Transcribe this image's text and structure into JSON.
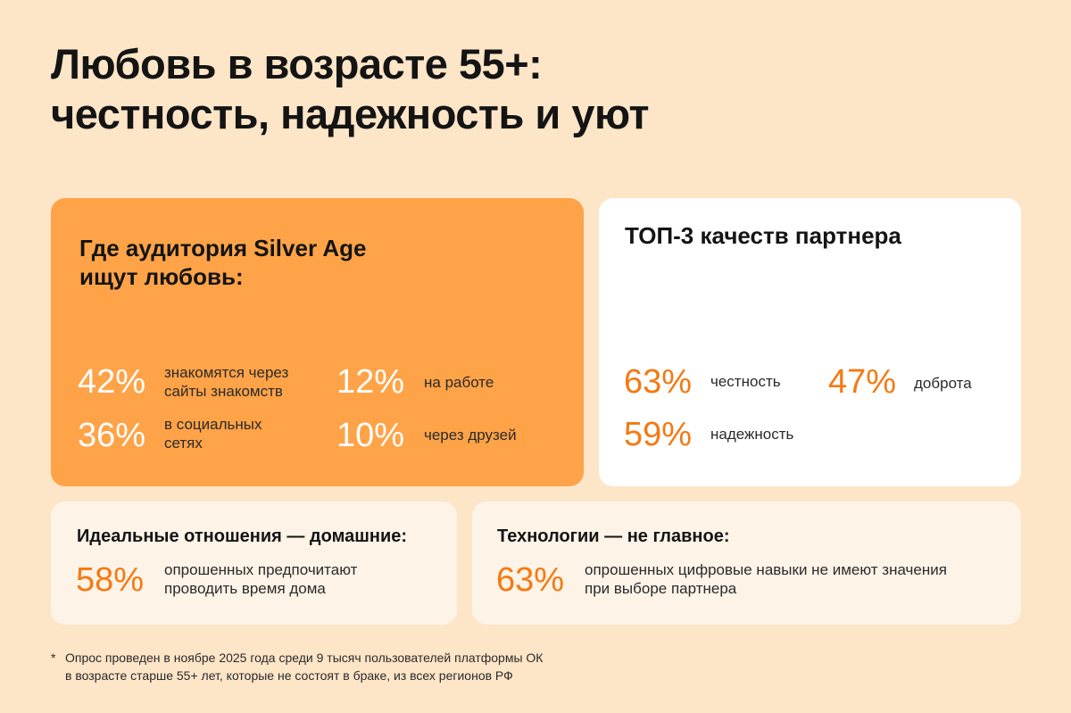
{
  "title": {
    "line1": "Любовь в возрасте 55+:",
    "line2": "честность, надежность и уют"
  },
  "where_card": {
    "heading_line1": "Где аудитория Silver Age",
    "heading_line2": "ищут любовь:",
    "stats": [
      {
        "value": "42%",
        "line1": "знакомятся через",
        "line2": "сайты знакомств"
      },
      {
        "value": "12%",
        "line1": "на работе",
        "line2": ""
      },
      {
        "value": "36%",
        "line1": "в социальных",
        "line2": "сетях"
      },
      {
        "value": "10%",
        "line1": "через друзей",
        "line2": ""
      }
    ]
  },
  "top3_card": {
    "heading": "ТОП-3 качеств партнера",
    "stats": [
      {
        "value": "63%",
        "label": "честность"
      },
      {
        "value": "47%",
        "label": "доброта"
      },
      {
        "value": "59%",
        "label": "надежность"
      }
    ]
  },
  "ideal_card": {
    "heading": "Идеальные отношения — домашние:",
    "value": "58%",
    "line1": "опрошенных предпочитают",
    "line2": "проводить время дома"
  },
  "tech_card": {
    "heading": "Технологии — не главное:",
    "value": "63%",
    "line1": "опрошенных цифровые навыки не имеют значения",
    "line2": "при выборе партнера"
  },
  "footnote": {
    "mark": "*",
    "line1": "Опрос проведен в ноябре 2025 года среди 9 тысяч пользователей платформы ОК",
    "line2": "в возрасте старше 55+ лет, которые не состоят в браке, из всех регионов РФ"
  },
  "colors": {
    "background": "#fde5c8",
    "orange_card": "#ffa348",
    "accent_orange": "#f47a12",
    "light_card": "#fdf3e7"
  }
}
